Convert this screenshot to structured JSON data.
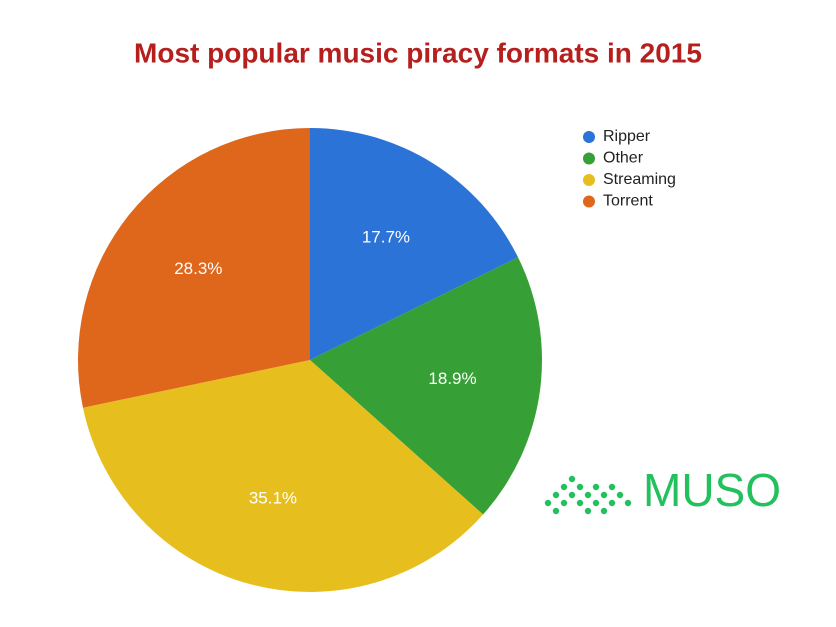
{
  "chart_data": {
    "type": "pie",
    "title": "Most popular music piracy formats in 2015",
    "categories": [
      "Ripper",
      "Other",
      "Streaming",
      "Torrent"
    ],
    "values": [
      17.7,
      18.9,
      35.1,
      28.3
    ],
    "value_labels": [
      "17.7%",
      "18.9%",
      "35.1%",
      "28.3%"
    ],
    "colors": [
      "#2b73d6",
      "#36a036",
      "#e6bf1f",
      "#df671c"
    ],
    "legend": "top-right"
  },
  "logo": "MUSO"
}
